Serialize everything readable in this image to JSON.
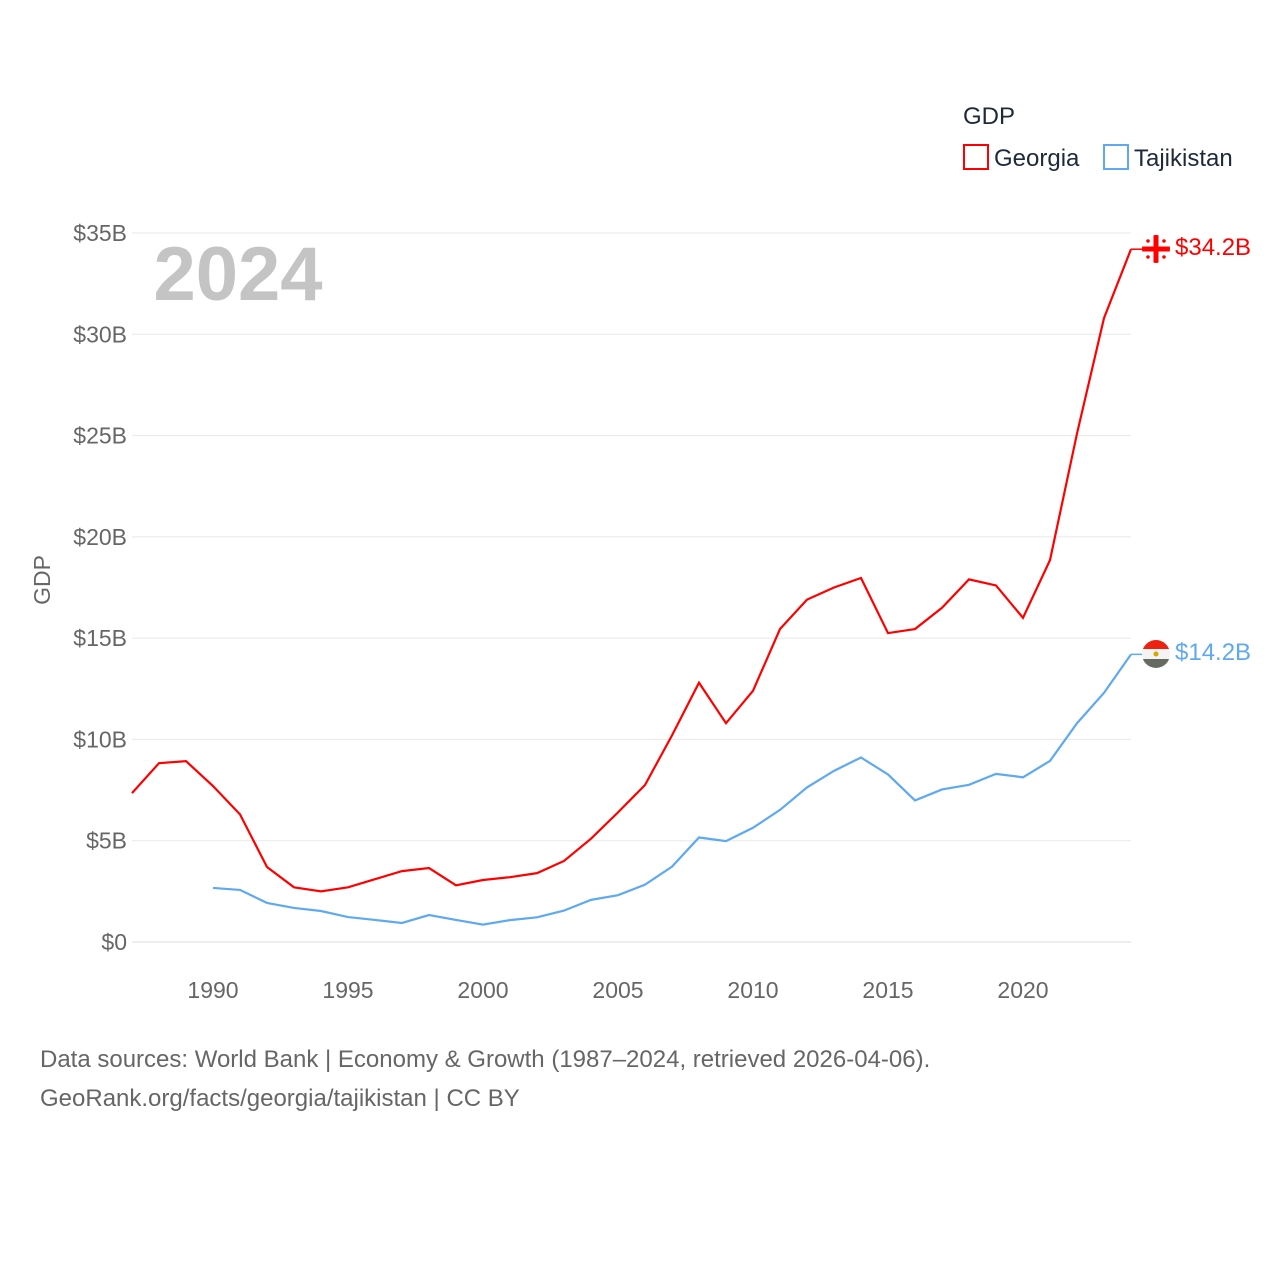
{
  "chart_data": {
    "type": "line",
    "title": "GDP",
    "ylabel": "GDP",
    "xlabel": "",
    "year_label": "2024",
    "xlim": [
      1987,
      2024
    ],
    "ylim": [
      0,
      35
    ],
    "x_ticks": [
      1990,
      1995,
      2000,
      2005,
      2010,
      2015,
      2020
    ],
    "y_ticks": [
      {
        "v": 0,
        "label": "$0"
      },
      {
        "v": 5,
        "label": "$5B"
      },
      {
        "v": 10,
        "label": "$10B"
      },
      {
        "v": 15,
        "label": "$15B"
      },
      {
        "v": 20,
        "label": "$20B"
      },
      {
        "v": 25,
        "label": "$25B"
      },
      {
        "v": 30,
        "label": "$30B"
      },
      {
        "v": 35,
        "label": "$35B"
      }
    ],
    "grid": true,
    "legend_position": "top-right",
    "series": [
      {
        "name": "Georgia",
        "color": "#ff0000",
        "end_label": "$34.2B",
        "flag": "georgia-flag",
        "x": [
          1987,
          1988,
          1989,
          1990,
          1991,
          1992,
          1993,
          1994,
          1995,
          1996,
          1997,
          1998,
          1999,
          2000,
          2001,
          2002,
          2003,
          2004,
          2005,
          2006,
          2007,
          2008,
          2009,
          2010,
          2011,
          2012,
          2013,
          2014,
          2015,
          2016,
          2017,
          2018,
          2019,
          2020,
          2021,
          2022,
          2023,
          2024
        ],
        "values": [
          7.35,
          8.83,
          8.93,
          7.7,
          6.3,
          3.7,
          2.7,
          2.5,
          2.7,
          3.1,
          3.5,
          3.65,
          2.8,
          3.06,
          3.2,
          3.4,
          4.0,
          5.1,
          6.4,
          7.75,
          10.2,
          12.8,
          10.8,
          12.4,
          15.45,
          16.9,
          17.5,
          17.97,
          15.25,
          15.45,
          16.5,
          17.9,
          17.6,
          16.0,
          18.85,
          25.1,
          30.8,
          34.2
        ]
      },
      {
        "name": "Tajikistan",
        "color": "#5ea9ef",
        "end_label": "$14.2B",
        "flag": "tajikistan-flag",
        "x": [
          1990,
          1991,
          1992,
          1993,
          1994,
          1995,
          1996,
          1997,
          1998,
          1999,
          2000,
          2001,
          2002,
          2003,
          2004,
          2005,
          2006,
          2007,
          2008,
          2009,
          2010,
          2011,
          2012,
          2013,
          2014,
          2015,
          2016,
          2017,
          2018,
          2019,
          2020,
          2021,
          2022,
          2023,
          2024
        ],
        "values": [
          2.67,
          2.57,
          1.93,
          1.68,
          1.53,
          1.23,
          1.09,
          0.94,
          1.33,
          1.09,
          0.86,
          1.08,
          1.22,
          1.55,
          2.08,
          2.31,
          2.83,
          3.72,
          5.16,
          4.98,
          5.64,
          6.52,
          7.63,
          8.45,
          9.11,
          8.27,
          6.99,
          7.53,
          7.76,
          8.3,
          8.13,
          8.94,
          10.8,
          12.3,
          14.2
        ]
      }
    ]
  },
  "footer": {
    "line1": "Data sources: World Bank | Economy & Growth (1987–2024, retrieved 2026-04-06).",
    "line2": "GeoRank.org/facts/georgia/tajikistan | CC BY"
  }
}
